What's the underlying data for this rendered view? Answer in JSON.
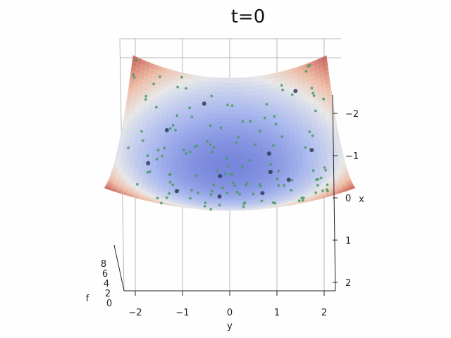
{
  "chart_data": {
    "type": "surface3d",
    "title": "t=0",
    "xlabel": "x",
    "ylabel": "y",
    "zlabel": "f",
    "x_ticks": [
      "−2",
      "−1",
      "0",
      "1",
      "2"
    ],
    "y_ticks": [
      "−2",
      "−1",
      "0",
      "1",
      "2"
    ],
    "z_ticks": [
      "0",
      "2",
      "4",
      "6",
      "8"
    ],
    "xlim": [
      -2.3,
      2.3
    ],
    "ylim": [
      -2.3,
      2.3
    ],
    "zlim": [
      0,
      8
    ],
    "surface": "f(x,y) = x^2 + y^2",
    "colormap": "coolwarm",
    "grid": true,
    "particles_large": [
      {
        "x": -1.85,
        "y": 1.55
      },
      {
        "x": -1.75,
        "y": -0.6
      },
      {
        "x": -0.9,
        "y": -1.4
      },
      {
        "x": -0.15,
        "y": 1.75
      },
      {
        "x": -0.35,
        "y": 0.85
      },
      {
        "x": 0.3,
        "y": -1.7
      },
      {
        "x": 0.3,
        "y": 0.85
      },
      {
        "x": 0.35,
        "y": -0.2
      },
      {
        "x": 0.75,
        "y": 1.2
      },
      {
        "x": 1.25,
        "y": -1.05
      },
      {
        "x": 1.3,
        "y": -0.2
      },
      {
        "x": 1.2,
        "y": 0.65
      }
    ]
  }
}
